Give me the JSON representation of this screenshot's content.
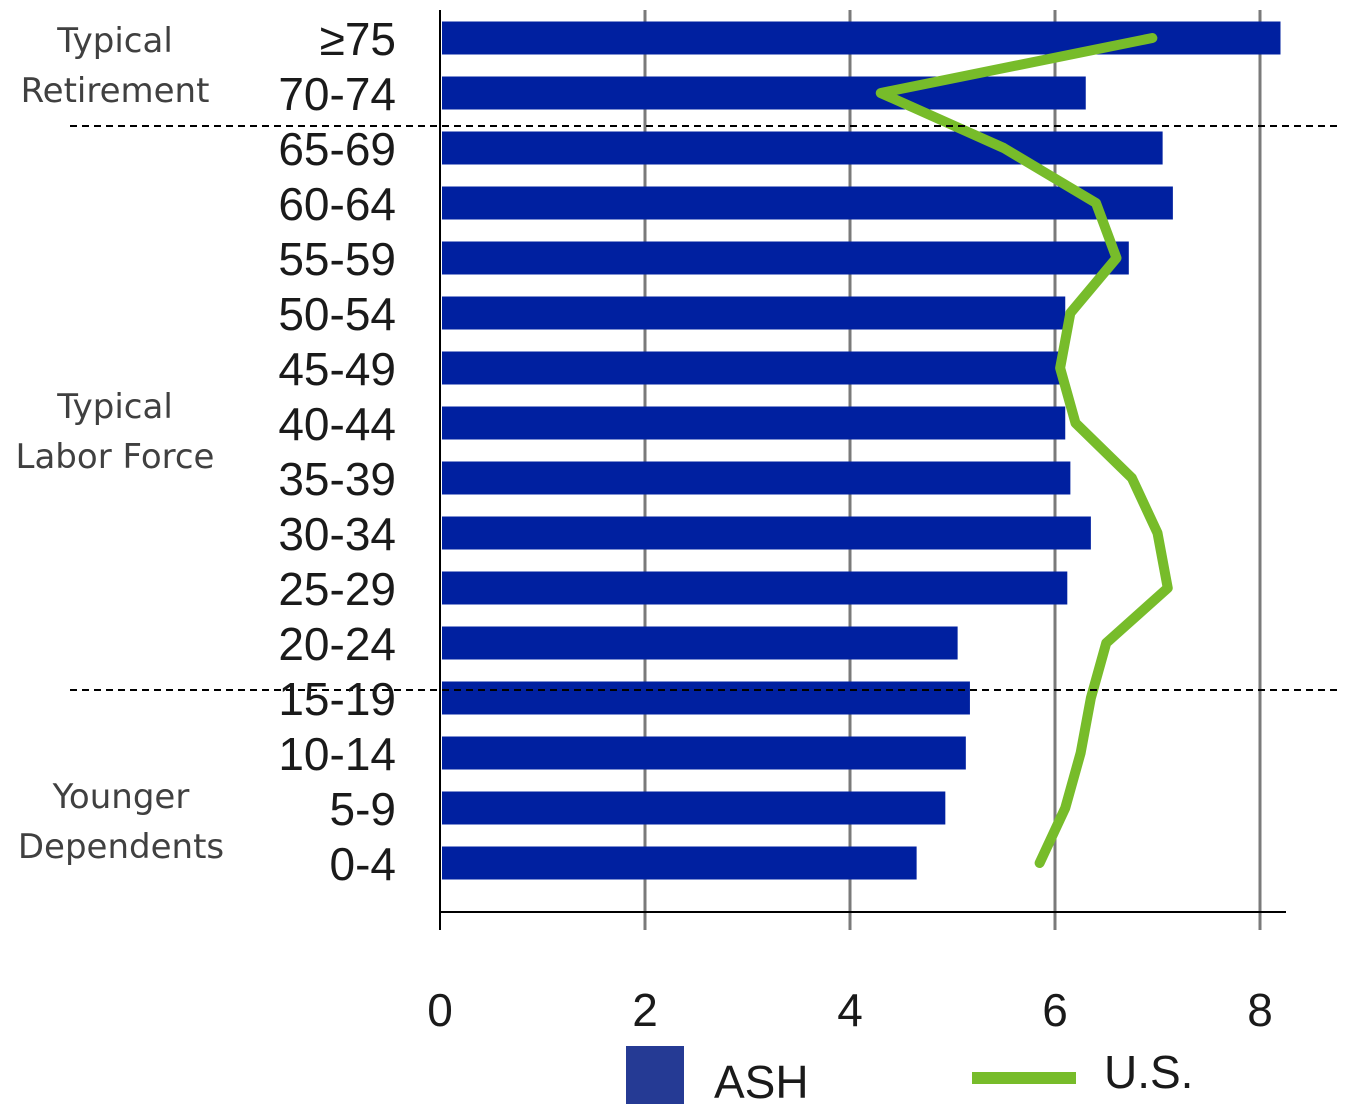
{
  "chart_data": {
    "type": "bar",
    "orientation": "horizontal",
    "categories": [
      "≥75",
      "70-74",
      "65-69",
      "60-64",
      "55-59",
      "50-54",
      "45-49",
      "40-44",
      "35-39",
      "30-34",
      "25-29",
      "20-24",
      "15-19",
      "10-14",
      "5-9",
      "0-4"
    ],
    "series": [
      {
        "name": "ASH",
        "type": "bar",
        "color": "#0020A0",
        "values": [
          8.2,
          6.3,
          7.05,
          7.15,
          6.72,
          6.1,
          6.05,
          6.1,
          6.15,
          6.35,
          6.12,
          5.05,
          5.17,
          5.13,
          4.93,
          4.65
        ]
      },
      {
        "name": "U.S.",
        "type": "line",
        "color": "#77BC2A",
        "values": [
          6.95,
          4.3,
          5.5,
          6.4,
          6.6,
          6.15,
          6.05,
          6.2,
          6.75,
          7.0,
          7.1,
          6.5,
          6.35,
          6.25,
          6.1,
          5.85
        ]
      }
    ],
    "xlim": [
      0,
      8.2
    ],
    "xticks": [
      "0",
      "2",
      "4",
      "6",
      "8"
    ],
    "grid": "vertical",
    "groups": [
      {
        "label_lines": [
          "Typical",
          "Retirement"
        ]
      },
      {
        "label_lines": [
          "Typical",
          "Labor Force"
        ]
      },
      {
        "label_lines": [
          "Younger",
          "Dependents"
        ]
      }
    ],
    "legend": {
      "position": "bottom",
      "entries": [
        "ASH",
        "U.S."
      ]
    }
  }
}
